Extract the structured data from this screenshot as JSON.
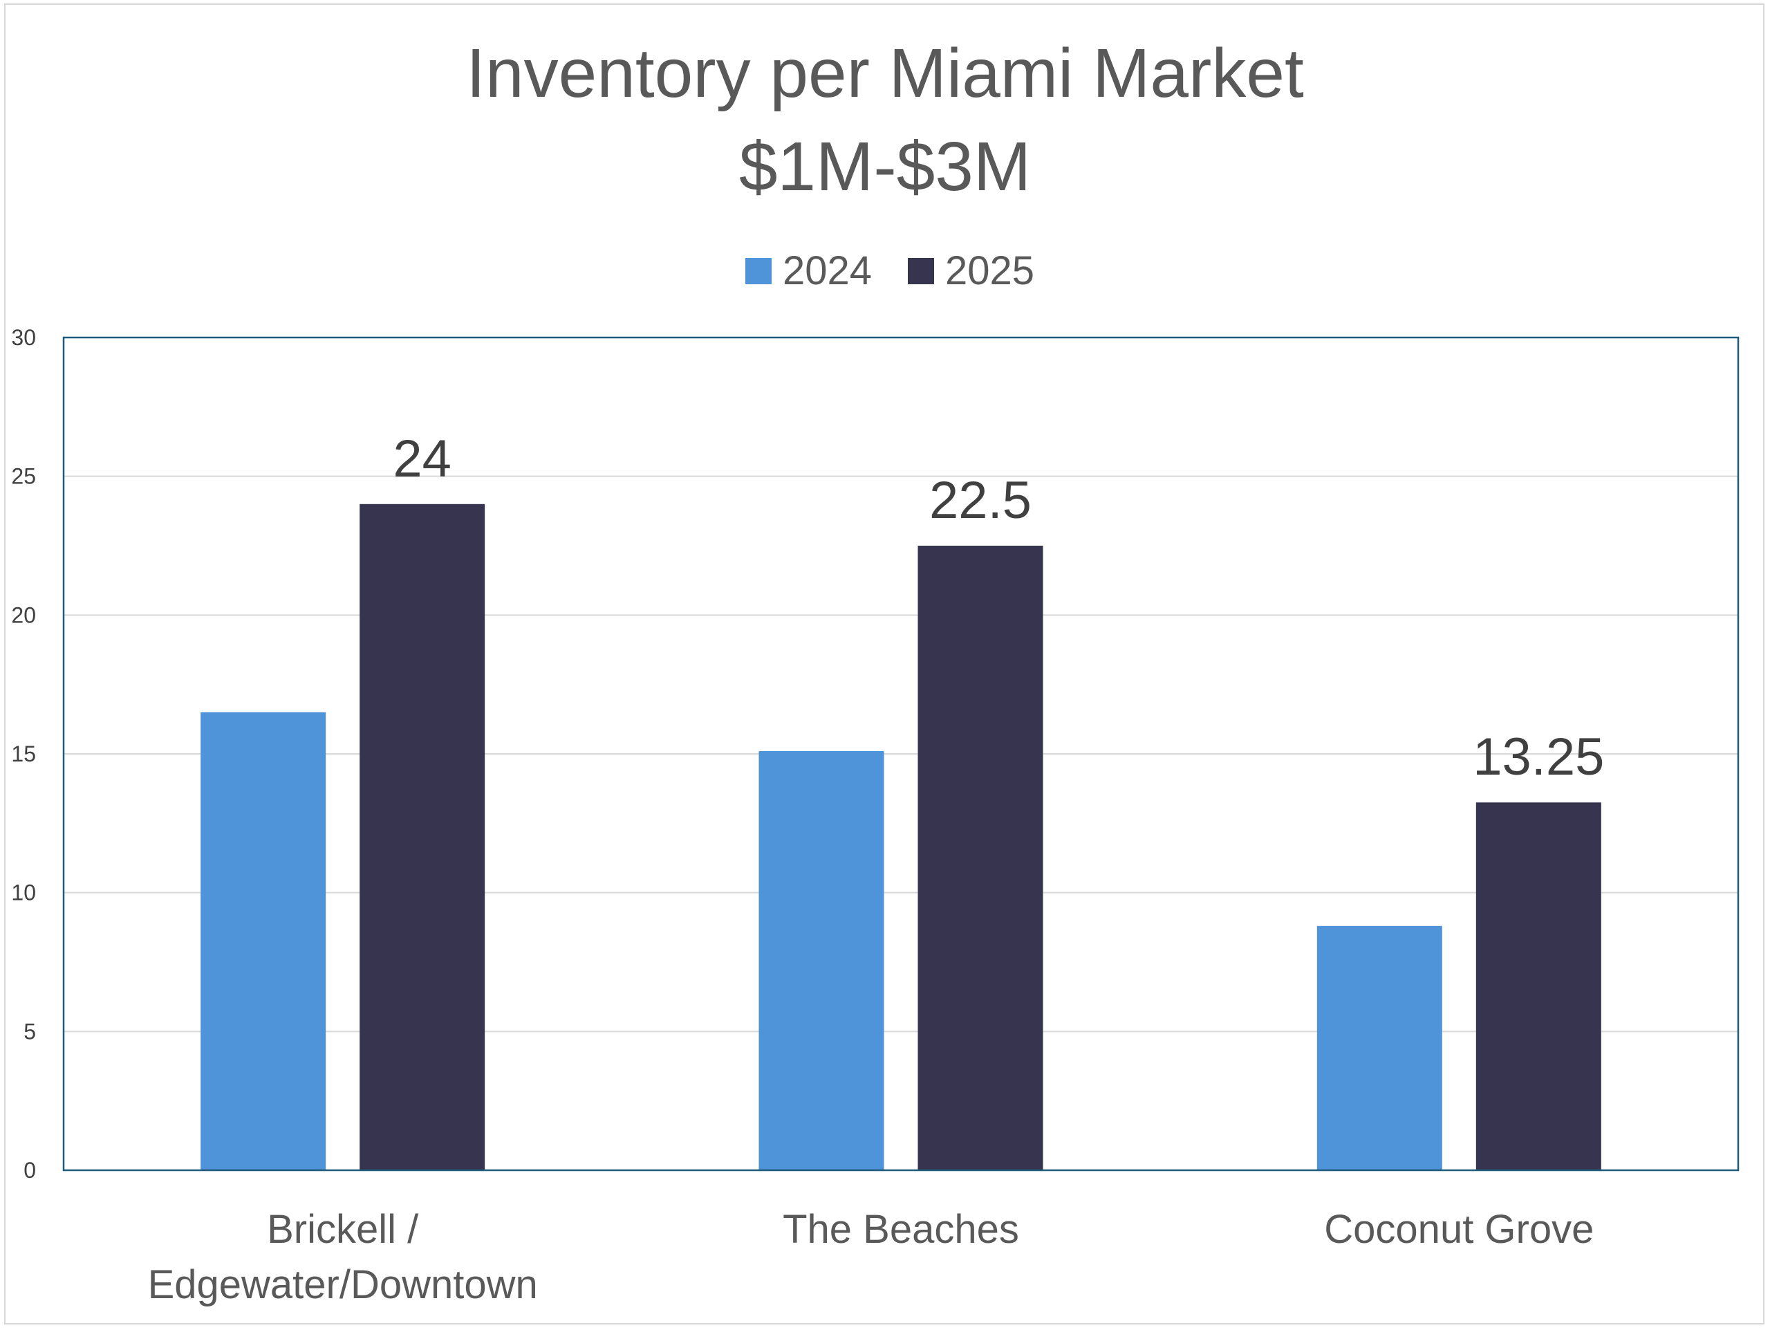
{
  "chart_data": {
    "type": "bar",
    "title": "Inventory per Miami Market",
    "subtitle": "$1M-$3M",
    "categories": [
      [
        "Brickell /",
        "Edgewater/Downtown"
      ],
      [
        "The Beaches"
      ],
      [
        "Coconut Grove"
      ]
    ],
    "series": [
      {
        "name": "2024",
        "values": [
          16.5,
          15.1,
          8.8
        ],
        "color": "#4f94d8"
      },
      {
        "name": "2025",
        "values": [
          24,
          22.5,
          13.25
        ],
        "color": "#36344e"
      }
    ],
    "data_labels": {
      "2025": [
        "24",
        "22.5",
        "13.25"
      ]
    },
    "ylim": [
      0,
      30
    ],
    "yticks": [
      0,
      5,
      10,
      15,
      20,
      25,
      30
    ],
    "grid": true,
    "legend_position": "top",
    "plot_border_color": "#1f5b7a"
  }
}
